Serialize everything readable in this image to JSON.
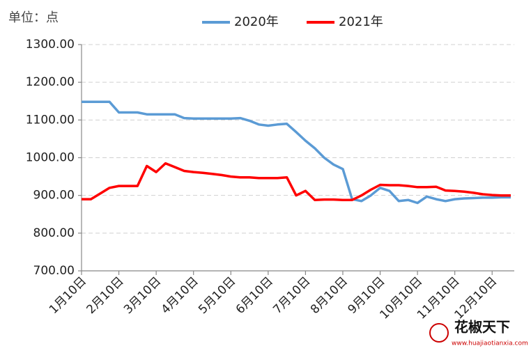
{
  "chart_data": {
    "type": "line",
    "unit_label": "单位：点",
    "categories": [
      "1月10日",
      null,
      null,
      null,
      "2月10日",
      null,
      null,
      null,
      "3月10日",
      null,
      null,
      null,
      "4月10日",
      null,
      null,
      null,
      "5月10日",
      null,
      null,
      null,
      "6月10日",
      null,
      null,
      null,
      "7月10日",
      null,
      null,
      null,
      "8月10日",
      null,
      null,
      null,
      "9月10日",
      null,
      null,
      null,
      "10月10日",
      null,
      null,
      null,
      "11月10日",
      null,
      null,
      null,
      "12月10日",
      null,
      null
    ],
    "series": [
      {
        "name": "2020年",
        "color": "#5b9bd5",
        "values": [
          1148,
          1148,
          1148,
          1148,
          1120,
          1120,
          1120,
          1115,
          1115,
          1115,
          1115,
          1105,
          1104,
          1104,
          1104,
          1104,
          1104,
          1105,
          1098,
          1088,
          1085,
          1088,
          1090,
          1068,
          1045,
          1025,
          1000,
          982,
          970,
          890,
          885,
          900,
          920,
          912,
          885,
          888,
          880,
          897,
          890,
          885,
          890,
          892,
          893,
          894,
          894,
          895,
          895
        ]
      },
      {
        "name": "2021年",
        "color": "#ff0000",
        "values": [
          890,
          890,
          905,
          920,
          925,
          925,
          925,
          978,
          962,
          985,
          975,
          965,
          962,
          960,
          957,
          954,
          950,
          948,
          948,
          946,
          946,
          946,
          948,
          900,
          912,
          888,
          889,
          889,
          888,
          888,
          900,
          915,
          928,
          927,
          927,
          925,
          922,
          922,
          923,
          913,
          912,
          910,
          907,
          903,
          901,
          900,
          900
        ]
      }
    ],
    "ylim": [
      700,
      1300
    ],
    "yticks": [
      {
        "value": 700,
        "label": "700.00"
      },
      {
        "value": 800,
        "label": "800.00"
      },
      {
        "value": 900,
        "label": "900.00"
      },
      {
        "value": 1000,
        "label": "1000.00"
      },
      {
        "value": 1100,
        "label": "1100.00"
      },
      {
        "value": 1200,
        "label": "1200.00"
      },
      {
        "value": 1300,
        "label": "1300.00"
      }
    ],
    "grid": true,
    "legend": "top",
    "watermark": {
      "title": "花椒天下",
      "url": "www.huajiaotianxia.com"
    }
  }
}
